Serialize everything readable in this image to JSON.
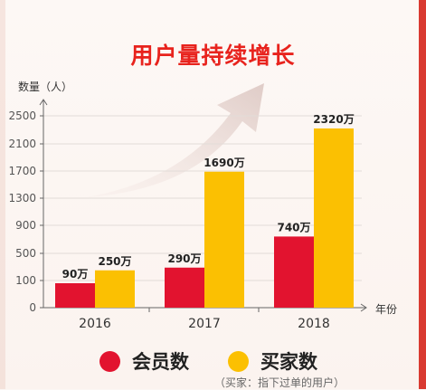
{
  "title": "用户量持续增长",
  "colors": {
    "member": "#e2132f",
    "buyer": "#fbc002",
    "title": "#e8231d",
    "axis": "#666666"
  },
  "chart_data": {
    "type": "bar",
    "categories": [
      "2016",
      "2017",
      "2018"
    ],
    "series": [
      {
        "name": "会员数",
        "values": [
          90,
          290,
          740
        ],
        "labels": [
          "90万",
          "290万",
          "740万"
        ]
      },
      {
        "name": "买家数",
        "values": [
          250,
          1690,
          2320
        ],
        "labels": [
          "250万",
          "1690万",
          "2320万"
        ]
      }
    ],
    "ylabel": "数量（人）",
    "xlabel": "年份",
    "yticks": [
      "0",
      "100",
      "500",
      "900",
      "1300",
      "1700",
      "2100",
      "2500"
    ],
    "legend_position": "bottom"
  },
  "legend": {
    "member": "会员数",
    "buyer": "买家数"
  },
  "note": "（买家：指下过单的用户）"
}
